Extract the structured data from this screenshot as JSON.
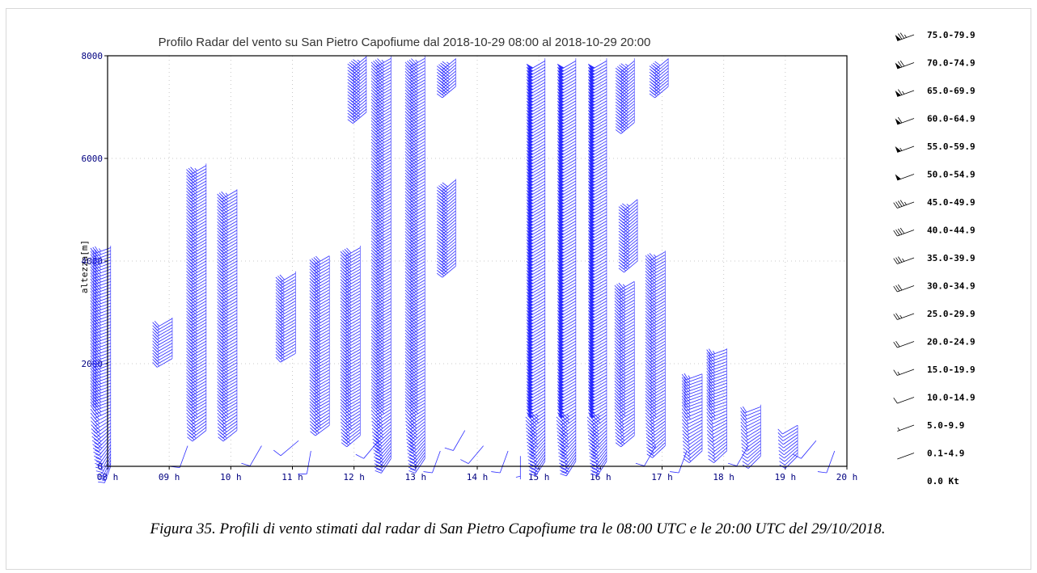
{
  "caption": "Figura 35. Profili di vento stimati dal radar di San Pietro Capofiume tra le 08:00 UTC  e le 20:00 UTC del 29/10/2018.",
  "colors": {
    "barb": "#2b2bff",
    "axis": "#000000",
    "tick_text": "#000080",
    "grid": "#c8c8c8"
  },
  "chart_data": {
    "type": "wind-barb-profile",
    "title": "Profilo Radar del vento su San Pietro Capofiume dal 2018-10-29 08:00 al 2018-10-29 20:00",
    "xlabel": "",
    "ylabel": "altezza[m]",
    "xlim": [
      8,
      20
    ],
    "ylim": [
      0,
      8000
    ],
    "grid": true,
    "xticks": [
      "08 h",
      "09 h",
      "10 h",
      "11 h",
      "12 h",
      "13 h",
      "14 h",
      "15 h",
      "16 h",
      "17 h",
      "18 h",
      "19 h",
      "20 h"
    ],
    "yticks": [
      "0",
      "2000",
      "4000",
      "6000",
      "8000"
    ],
    "legend_position": "right",
    "legend": [
      {
        "label": "75.0-79.9",
        "speed": 77
      },
      {
        "label": "70.0-74.9",
        "speed": 72
      },
      {
        "label": "65.0-69.9",
        "speed": 67
      },
      {
        "label": "60.0-64.9",
        "speed": 62
      },
      {
        "label": "55.0-59.9",
        "speed": 57
      },
      {
        "label": "50.0-54.9",
        "speed": 52
      },
      {
        "label": "45.0-49.9",
        "speed": 47
      },
      {
        "label": "40.0-44.9",
        "speed": 42
      },
      {
        "label": "35.0-39.9",
        "speed": 37
      },
      {
        "label": "30.0-34.9",
        "speed": 32
      },
      {
        "label": "25.0-29.9",
        "speed": 27
      },
      {
        "label": "20.0-24.9",
        "speed": 22
      },
      {
        "label": "15.0-19.9",
        "speed": 17
      },
      {
        "label": "10.0-14.9",
        "speed": 12
      },
      {
        "label": "5.0-9.9",
        "speed": 7
      },
      {
        "label": "0.1-4.9",
        "speed": 2
      },
      {
        "label": "0.0 Kt",
        "speed": 0
      }
    ],
    "profiles": [
      {
        "time": 8.05,
        "base": 0,
        "top": 4300,
        "dir": 250,
        "speed": 35,
        "lowdir": 200
      },
      {
        "time": 9.05,
        "base": 2100,
        "top": 2900,
        "dir": 240,
        "speed": 20,
        "lowdir": 200
      },
      {
        "time": 9.6,
        "base": 700,
        "top": 5900,
        "dir": 240,
        "speed": 35,
        "lowdir": 220
      },
      {
        "time": 10.1,
        "base": 700,
        "top": 5400,
        "dir": 240,
        "speed": 35,
        "lowdir": 220
      },
      {
        "time": 11.05,
        "base": 2200,
        "top": 3800,
        "dir": 240,
        "speed": 30,
        "lowdir": 220
      },
      {
        "time": 11.6,
        "base": 800,
        "top": 4100,
        "dir": 240,
        "speed": 40,
        "lowdir": 220
      },
      {
        "time": 12.1,
        "base": 600,
        "top": 4300,
        "dir": 240,
        "speed": 40,
        "lowdir": 220
      },
      {
        "time": 12.2,
        "base": 6900,
        "top": 8000,
        "dir": 230,
        "speed": 45,
        "lowdir": 230
      },
      {
        "time": 12.6,
        "base": 150,
        "top": 8000,
        "dir": 240,
        "speed": 45,
        "lowdir": 210
      },
      {
        "time": 13.15,
        "base": 150,
        "top": 8000,
        "dir": 240,
        "speed": 45,
        "lowdir": 210
      },
      {
        "time": 13.65,
        "base": 3900,
        "top": 5600,
        "dir": 230,
        "speed": 40,
        "lowdir": 230
      },
      {
        "time": 13.65,
        "base": 7400,
        "top": 7950,
        "dir": 230,
        "speed": 45,
        "lowdir": 230
      },
      {
        "time": 15.1,
        "base": 100,
        "top": 7950,
        "dir": 240,
        "speed": 50,
        "lowdir": 210
      },
      {
        "time": 15.6,
        "base": 100,
        "top": 7950,
        "dir": 240,
        "speed": 50,
        "lowdir": 210
      },
      {
        "time": 16.1,
        "base": 100,
        "top": 7950,
        "dir": 240,
        "speed": 50,
        "lowdir": 210
      },
      {
        "time": 16.55,
        "base": 600,
        "top": 3600,
        "dir": 240,
        "speed": 35,
        "lowdir": 220
      },
      {
        "time": 16.6,
        "base": 4000,
        "top": 5200,
        "dir": 230,
        "speed": 35,
        "lowdir": 230
      },
      {
        "time": 16.55,
        "base": 6700,
        "top": 7950,
        "dir": 230,
        "speed": 45,
        "lowdir": 230
      },
      {
        "time": 17.05,
        "base": 400,
        "top": 4200,
        "dir": 240,
        "speed": 35,
        "lowdir": 220
      },
      {
        "time": 17.1,
        "base": 7400,
        "top": 7950,
        "dir": 230,
        "speed": 40,
        "lowdir": 230
      },
      {
        "time": 17.65,
        "base": 300,
        "top": 1800,
        "dir": 250,
        "speed": 25,
        "lowdir": 220
      },
      {
        "time": 18.05,
        "base": 300,
        "top": 2300,
        "dir": 250,
        "speed": 25,
        "lowdir": 220
      },
      {
        "time": 18.6,
        "base": 200,
        "top": 1200,
        "dir": 250,
        "speed": 20,
        "lowdir": 220
      },
      {
        "time": 19.2,
        "base": 200,
        "top": 800,
        "dir": 250,
        "speed": 15,
        "lowdir": 220
      }
    ],
    "scattered_barbs": [
      {
        "time": 9.3,
        "height": 400,
        "dir": 200,
        "speed": 10
      },
      {
        "time": 10.5,
        "height": 400,
        "dir": 210,
        "speed": 10
      },
      {
        "time": 11.1,
        "height": 500,
        "dir": 230,
        "speed": 10
      },
      {
        "time": 11.3,
        "height": 300,
        "dir": 190,
        "speed": 10
      },
      {
        "time": 12.4,
        "height": 500,
        "dir": 220,
        "speed": 10
      },
      {
        "time": 13.4,
        "height": 300,
        "dir": 200,
        "speed": 10
      },
      {
        "time": 13.8,
        "height": 700,
        "dir": 210,
        "speed": 10
      },
      {
        "time": 14.1,
        "height": 400,
        "dir": 220,
        "speed": 10
      },
      {
        "time": 14.5,
        "height": 300,
        "dir": 200,
        "speed": 10
      },
      {
        "time": 14.7,
        "height": 200,
        "dir": 180,
        "speed": 5
      },
      {
        "time": 16.9,
        "height": 400,
        "dir": 210,
        "speed": 10
      },
      {
        "time": 17.4,
        "height": 300,
        "dir": 200,
        "speed": 10
      },
      {
        "time": 18.4,
        "height": 400,
        "dir": 210,
        "speed": 10
      },
      {
        "time": 19.5,
        "height": 500,
        "dir": 220,
        "speed": 10
      },
      {
        "time": 19.8,
        "height": 300,
        "dir": 200,
        "speed": 10
      }
    ]
  }
}
